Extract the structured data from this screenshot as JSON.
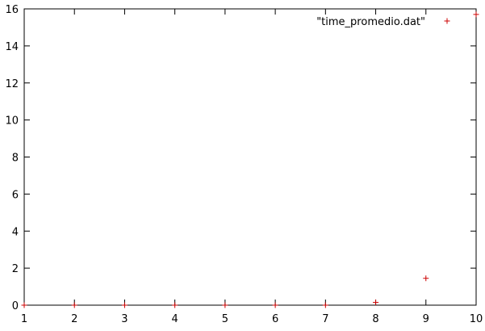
{
  "chart_data": {
    "type": "scatter",
    "title": "",
    "xlabel": "",
    "ylabel": "",
    "xlim": [
      1,
      10
    ],
    "ylim": [
      0,
      16
    ],
    "x_ticks": [
      "1",
      "2",
      "3",
      "4",
      "5",
      "6",
      "7",
      "8",
      "9",
      "10"
    ],
    "y_ticks": [
      "0",
      "2",
      "4",
      "6",
      "8",
      "10",
      "12",
      "14",
      "16"
    ],
    "grid": false,
    "legend_position": "top-right",
    "series": [
      {
        "name": "\"time_promedio.dat\"",
        "color": "#cc0000",
        "marker": "plus",
        "x": [
          1,
          2,
          3,
          4,
          5,
          6,
          7,
          8,
          9,
          10
        ],
        "y": [
          0.0,
          0.0,
          0.0,
          0.0,
          0.0,
          0.0,
          0.0,
          0.15,
          1.45,
          15.7
        ]
      }
    ]
  }
}
